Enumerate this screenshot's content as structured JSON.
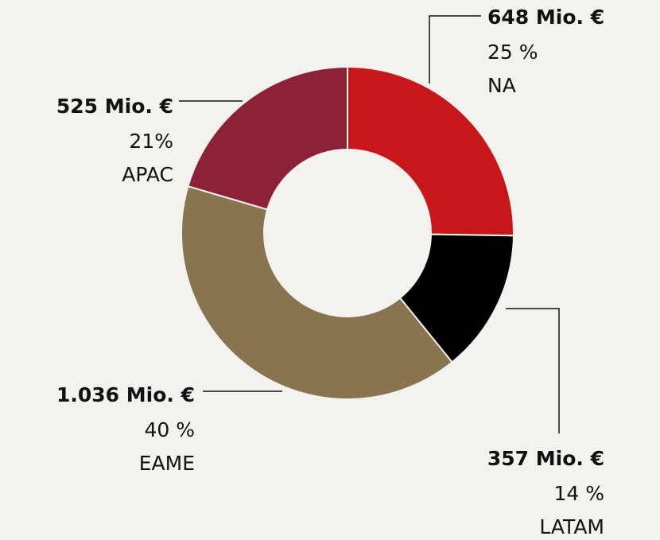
{
  "chart_data": {
    "type": "donut",
    "categories": [
      "NA",
      "LATAM",
      "EAME",
      "APAC"
    ],
    "values": [
      648,
      357,
      1036,
      525
    ],
    "value_labels": [
      "648 Mio. €",
      "357 Mio. €",
      "1.036 Mio. €",
      "525 Mio. €"
    ],
    "shares": [
      25,
      14,
      40,
      21
    ],
    "share_labels": [
      "25 %",
      "14 %",
      "40 %",
      "21%"
    ],
    "colors": [
      "#c8171a",
      "#000000",
      "#88744e",
      "#8b2238"
    ]
  }
}
